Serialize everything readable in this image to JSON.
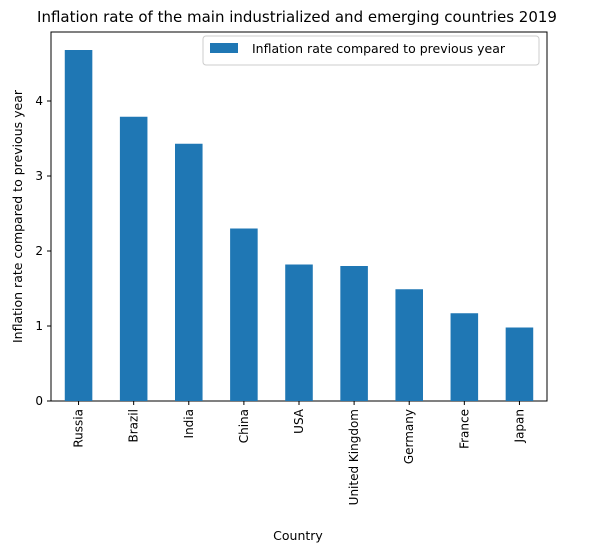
{
  "chart_data": {
    "type": "bar",
    "title": "Inflation rate of the main industrialized and emerging countries 2019",
    "xlabel": "Country",
    "ylabel": "Inflation rate compared to previous year",
    "categories": [
      "Russia",
      "Brazil",
      "India",
      "China",
      "USA",
      "United Kingdom",
      "Germany",
      "France",
      "Japan"
    ],
    "series": [
      {
        "name": "Inflation rate compared to previous year",
        "values": [
          4.68,
          3.79,
          3.43,
          2.3,
          1.82,
          1.8,
          1.49,
          1.17,
          0.98
        ],
        "color": "#1f77b4"
      }
    ],
    "ylim": [
      0,
      4.92
    ],
    "yticks": [
      0,
      1,
      2,
      3,
      4
    ],
    "grid": false,
    "legend_position": "top-right"
  }
}
